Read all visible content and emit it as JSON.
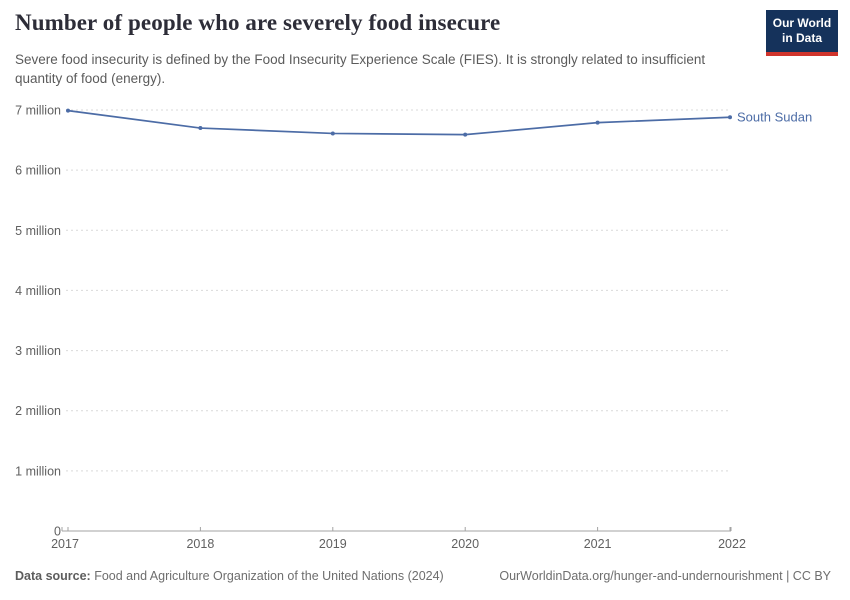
{
  "header": {
    "title": "Number of people who are severely food insecure",
    "subtitle": "Severe food insecurity is defined by the Food Insecurity Experience Scale (FIES). It is strongly related to insufficient quantity of food (energy)."
  },
  "logo": {
    "line1": "Our World",
    "line2": "in Data",
    "bg_color": "#15325b",
    "stripe_color": "#d0342c"
  },
  "chart_data": {
    "type": "line",
    "title": "Number of people who are severely food insecure",
    "unit": "people",
    "values_in": "millions",
    "x": [
      2017,
      2018,
      2019,
      2020,
      2021,
      2022
    ],
    "series": [
      {
        "name": "South Sudan",
        "values_millions": [
          6.99,
          6.7,
          6.61,
          6.59,
          6.79,
          6.88
        ],
        "color": "#4c6ca6"
      }
    ],
    "xlabel": "",
    "ylabel": "",
    "ylim_millions": [
      0,
      7
    ],
    "y_tick_labels": [
      "0",
      "1 million",
      "2 million",
      "3 million",
      "4 million",
      "5 million",
      "6 million",
      "7 million"
    ],
    "grid": "horizontal-dashed",
    "legend": "inline-end-label"
  },
  "footer": {
    "datasource_label": "Data source:",
    "datasource_text": " Food and Agriculture Organization of the United Nations (2024)",
    "link_text": "OurWorldinData.org/hunger-and-undernourishment | CC BY"
  }
}
